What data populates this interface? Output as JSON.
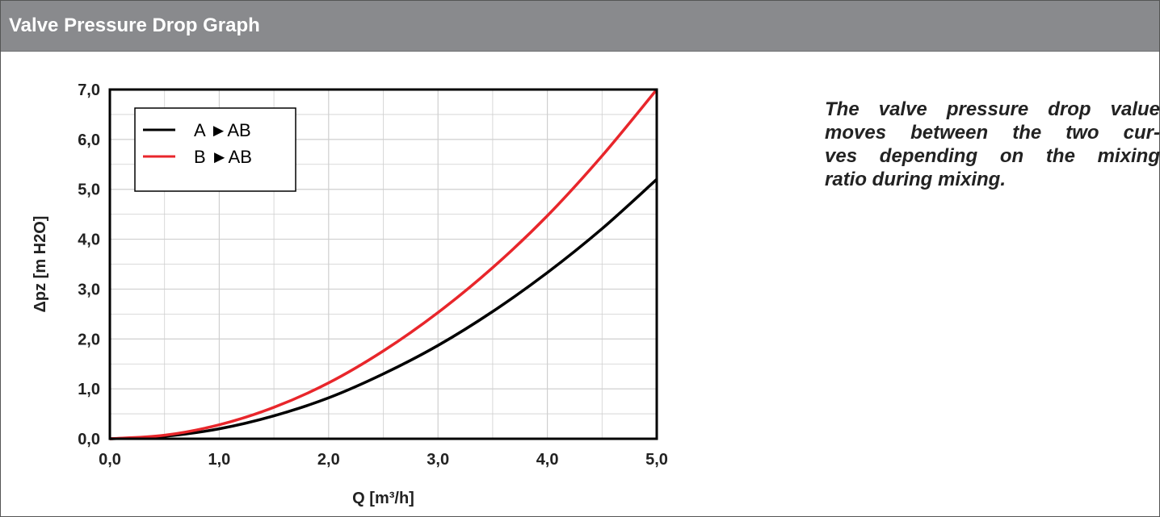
{
  "header": {
    "title": "Valve Pressure Drop Graph"
  },
  "note": {
    "lines": [
      "The valve pressure drop value",
      "moves between the two cur-",
      "ves depending on the mixing",
      "ratio during mixing."
    ]
  },
  "colors": {
    "header_bg": "#898a8d",
    "series_a": "#000000",
    "series_b": "#e8262b",
    "grid": "#cfcfcf"
  },
  "chart_data": {
    "type": "line",
    "xlabel": "Q [m³/h]",
    "ylabel": "Δpz [m H2O]",
    "xlim": [
      0,
      5
    ],
    "ylim": [
      0,
      7
    ],
    "grid": true,
    "legend_position": "top-left",
    "x_ticks": [
      "0,0",
      "1,0",
      "2,0",
      "3,0",
      "4,0",
      "5,0"
    ],
    "y_ticks": [
      "0,0",
      "1,0",
      "2,0",
      "3,0",
      "4,0",
      "5,0",
      "6,0",
      "7,0"
    ],
    "x": [
      0,
      0.5,
      1.0,
      1.5,
      2.0,
      2.5,
      3.0,
      3.5,
      4.0,
      4.5,
      5.0
    ],
    "series": [
      {
        "name": "A ►AB",
        "color": "#000000",
        "values": [
          0,
          0.05,
          0.2,
          0.46,
          0.82,
          1.3,
          1.87,
          2.55,
          3.33,
          4.21,
          5.2
        ]
      },
      {
        "name": "B ►AB",
        "color": "#e8262b",
        "values": [
          0,
          0.07,
          0.28,
          0.63,
          1.12,
          1.76,
          2.53,
          3.43,
          4.47,
          5.67,
          7.0
        ]
      }
    ]
  }
}
